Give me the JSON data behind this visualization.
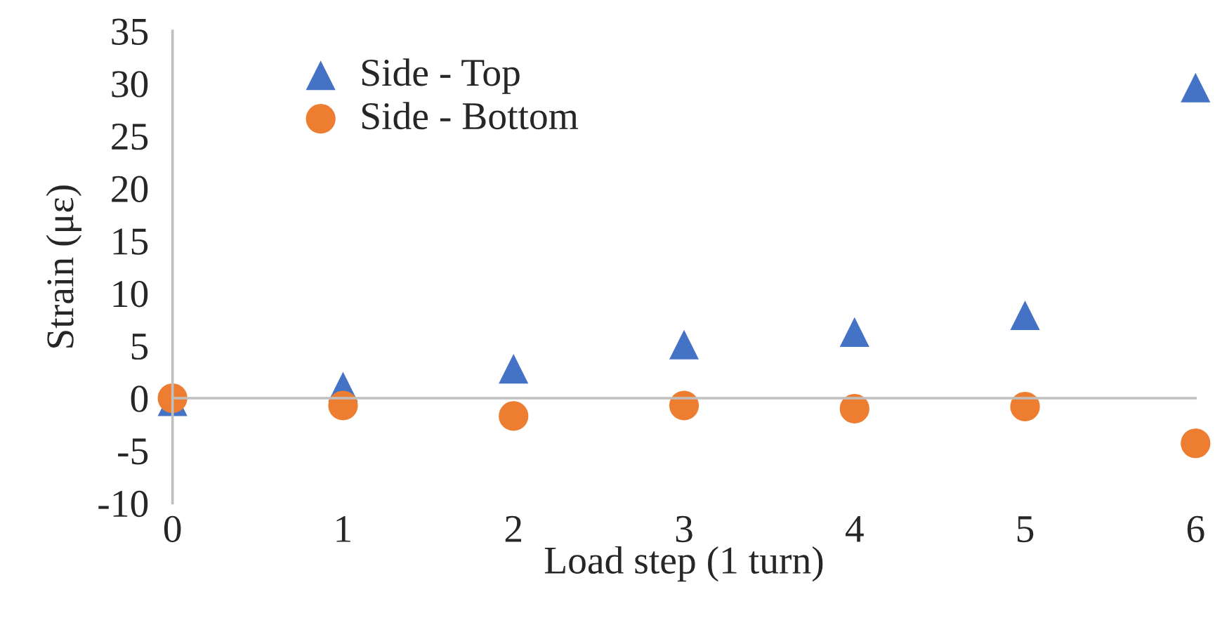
{
  "chart_data": {
    "type": "scatter",
    "xlabel": "Load step (1 turn)",
    "ylabel": "Strain (με)",
    "x": [
      0,
      1,
      2,
      3,
      4,
      5,
      6
    ],
    "series": [
      {
        "name": "Side - Top",
        "color": "#4472c4",
        "marker": "triangle",
        "values": [
          -0.3,
          1.1,
          2.8,
          5.1,
          6.3,
          7.9,
          29.6
        ]
      },
      {
        "name": "Side - Bottom",
        "color": "#ed7d31",
        "marker": "circle",
        "values": [
          0,
          -0.7,
          -1.7,
          -0.7,
          -1.0,
          -0.8,
          -4.3
        ]
      }
    ],
    "xlim": [
      0,
      6
    ],
    "xticks": [
      0,
      1,
      2,
      3,
      4,
      5,
      6
    ],
    "ylim": [
      -10,
      35
    ],
    "yticks": [
      -10,
      -5,
      0,
      5,
      10,
      15,
      20,
      25,
      30,
      35
    ],
    "legend": "top left"
  }
}
